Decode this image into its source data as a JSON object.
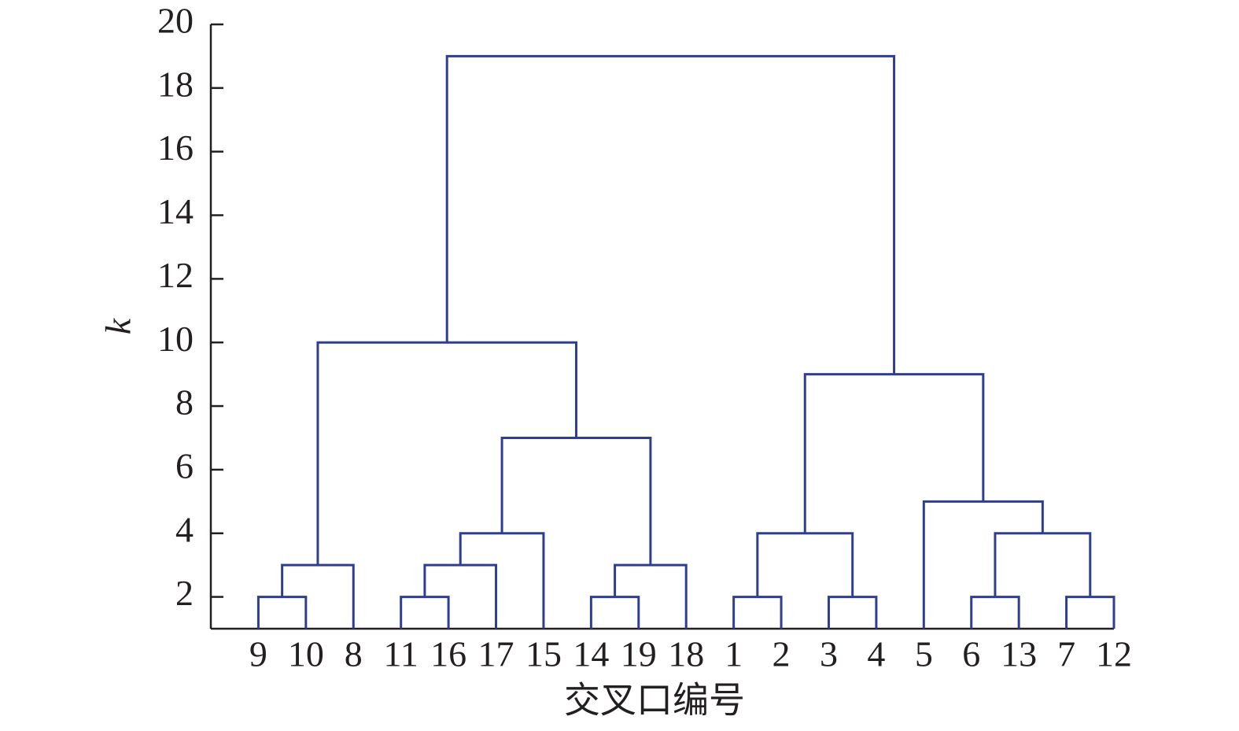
{
  "chart_data": {
    "type": "dendrogram",
    "xlabel": "交叉口编号",
    "ylabel": "k",
    "categories": [
      "9",
      "10",
      "8",
      "11",
      "16",
      "17",
      "15",
      "14",
      "19",
      "18",
      "1",
      "2",
      "3",
      "4",
      "5",
      "6",
      "13",
      "7",
      "12"
    ],
    "merges": [
      [
        0,
        1,
        2
      ],
      [
        19,
        2,
        3
      ],
      [
        3,
        4,
        2
      ],
      [
        21,
        5,
        3
      ],
      [
        22,
        6,
        4
      ],
      [
        7,
        8,
        2
      ],
      [
        24,
        9,
        3
      ],
      [
        23,
        25,
        7
      ],
      [
        20,
        26,
        10
      ],
      [
        10,
        11,
        2
      ],
      [
        12,
        13,
        2
      ],
      [
        28,
        29,
        4
      ],
      [
        15,
        16,
        2
      ],
      [
        17,
        18,
        2
      ],
      [
        31,
        32,
        4
      ],
      [
        14,
        33,
        5
      ],
      [
        30,
        34,
        9
      ],
      [
        27,
        35,
        19
      ]
    ],
    "color": "#2e3f93",
    "ylim": [
      1,
      20
    ],
    "yticks": [
      2,
      4,
      6,
      8,
      10,
      12,
      14,
      16,
      18,
      20
    ]
  }
}
